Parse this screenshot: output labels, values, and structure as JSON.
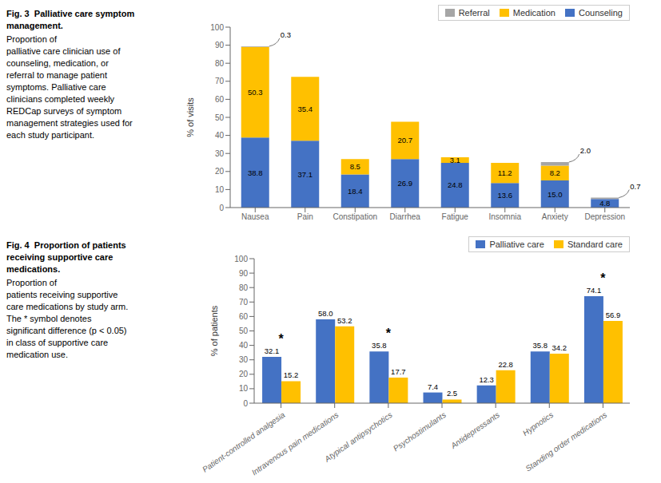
{
  "chart_data": [
    {
      "type": "bar",
      "stacked": true,
      "title": "Fig. 3  Palliative care symptom\nmanagement.",
      "subtitle": "Proportion of\npalliative care clinician use of\ncounseling, medication, or\nreferral to manage patient\nsymptoms. Palliative care\nclinicians completed weekly\nREDCap surveys of symptom\nmanagement strategies used for\neach study participant.",
      "categories": [
        "Nausea",
        "Pain",
        "Constipation",
        "Diarrhea",
        "Fatigue",
        "Insomnia",
        "Anxiety",
        "Depression"
      ],
      "series": [
        {
          "name": "Counseling",
          "color": "#4472c4",
          "values": [
            38.8,
            37.1,
            18.4,
            26.9,
            24.8,
            13.6,
            15.0,
            4.8
          ],
          "value_labels": [
            "38.8",
            "37.1",
            "18.4",
            "26.9",
            "24.8",
            "13.6",
            "15.0",
            "4.8"
          ]
        },
        {
          "name": "Medication",
          "color": "#ffc000",
          "values": [
            50.3,
            35.4,
            8.5,
            20.7,
            3.1,
            11.2,
            8.2,
            0.0
          ],
          "value_labels": [
            "50.3",
            "35.4",
            "8.5",
            "20.7",
            "3.1",
            "11.2",
            "8.2",
            null
          ]
        },
        {
          "name": "Referral",
          "color": "#a6a6a6",
          "values": [
            0.3,
            0.0,
            0.0,
            0.0,
            0.0,
            0.0,
            2.0,
            0.7
          ],
          "value_labels": [
            "0.3",
            null,
            null,
            null,
            null,
            null,
            "2.0",
            "0.7"
          ]
        }
      ],
      "ylabel": "% of visits",
      "ylim": [
        0,
        100
      ],
      "yticks": [
        0,
        10,
        20,
        30,
        40,
        50,
        60,
        70,
        80,
        90,
        100
      ],
      "legend": "upper right",
      "grid": false,
      "data_labels": true
    },
    {
      "type": "bar",
      "stacked": false,
      "title": "Fig. 4  Proportion of patients\nreceiving supportive care\nmedications.",
      "subtitle": "Proportion of\npatients receiving supportive\ncare medications by study arm.\nThe * symbol denotes\nsignificant difference (p < 0.05)\nin class of supportive care\nmedication use.",
      "categories": [
        "Patient-controlled analgesia",
        "Intravenous pain medications",
        "Atypical antipsychotics",
        "Psychostimulants",
        "Antidepressants",
        "Hypnotics",
        "Standing order medications"
      ],
      "series": [
        {
          "name": "Palliative care",
          "color": "#4472c4",
          "values": [
            32.1,
            58.0,
            35.8,
            7.4,
            12.3,
            35.8,
            74.1
          ],
          "value_labels": [
            "32.1",
            "58.0",
            "35.8",
            "7.4",
            "12.3",
            "35.8",
            "74.1"
          ]
        },
        {
          "name": "Standard care",
          "color": "#ffc000",
          "values": [
            15.2,
            53.2,
            17.7,
            2.5,
            22.8,
            34.2,
            56.9
          ]
        }
      ],
      "ylabel": "% of patients",
      "ylim": [
        0,
        100
      ],
      "yticks": [
        0,
        10,
        20,
        30,
        40,
        50,
        60,
        70,
        80,
        90,
        100
      ],
      "legend": "upper right",
      "grid": false,
      "data_labels": true,
      "annotations": [
        {
          "category": "Patient-controlled analgesia",
          "text": "*"
        },
        {
          "category": "Atypical antipsychotics",
          "text": "*"
        },
        {
          "category": "Standing order medications",
          "text": "*"
        }
      ]
    }
  ]
}
